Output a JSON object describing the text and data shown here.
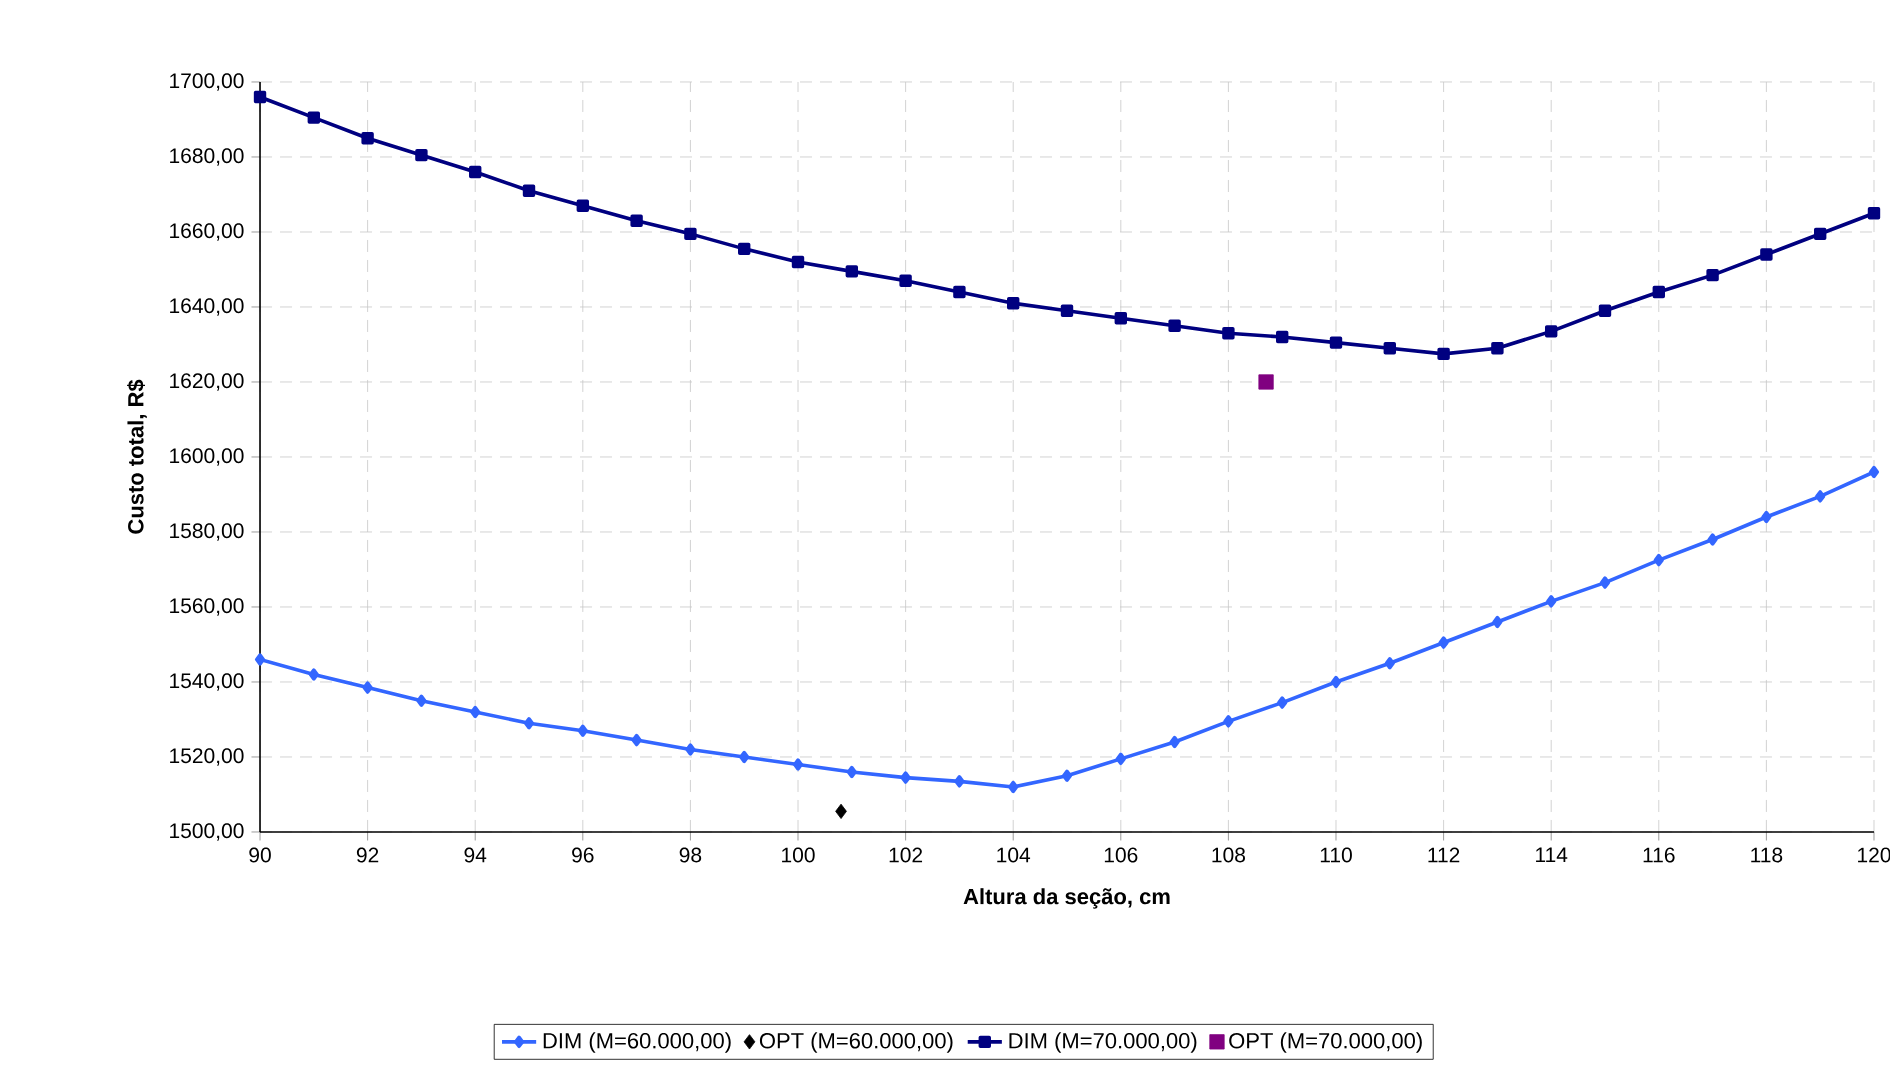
{
  "chart_data": {
    "type": "line",
    "xlabel": "Altura da seção, cm",
    "ylabel": "Custo total, R$",
    "x": [
      90,
      91,
      92,
      93,
      94,
      95,
      96,
      97,
      98,
      99,
      100,
      101,
      102,
      103,
      104,
      105,
      106,
      107,
      108,
      109,
      110,
      111,
      112,
      113,
      114,
      115,
      116,
      117,
      118,
      119,
      120
    ],
    "series": [
      {
        "name": "DIM (M=60.000,00)",
        "color": "#3366ff",
        "marker": "diamond",
        "values": [
          1546,
          1542,
          1538.5,
          1535,
          1532,
          1529,
          1527,
          1524.5,
          1522,
          1520,
          1518,
          1516,
          1514.5,
          1513.5,
          1512,
          1515,
          1519.5,
          1524,
          1529.5,
          1534.5,
          1540,
          1545,
          1550.5,
          1556,
          1561.5,
          1566.5,
          1572.5,
          1578,
          1584,
          1589.5,
          1596
        ]
      },
      {
        "name": "OPT (M=60.000,00)",
        "type": "scatter",
        "color": "#000000",
        "marker": "diamond",
        "x": [
          100.8
        ],
        "values": [
          1505.5
        ]
      },
      {
        "name": "DIM (M=70.000,00)",
        "color": "#000080",
        "marker": "square",
        "values": [
          1696,
          1690.5,
          1685,
          1680.5,
          1676,
          1671,
          1667,
          1663,
          1659.5,
          1655.5,
          1652,
          1649.5,
          1647,
          1644,
          1641,
          1639,
          1637,
          1635,
          1633,
          1632,
          1630.5,
          1629,
          1627.5,
          1629,
          1633.5,
          1639,
          1644,
          1648.5,
          1654,
          1659.5,
          1665
        ]
      },
      {
        "name": "OPT (M=70.000,00)",
        "type": "scatter",
        "color": "#800080",
        "marker": "square",
        "x": [
          108.7
        ],
        "values": [
          1620
        ]
      }
    ],
    "xlim": [
      90,
      120
    ],
    "xticks": [
      90,
      92,
      94,
      96,
      98,
      100,
      102,
      104,
      106,
      108,
      110,
      112,
      114,
      116,
      118,
      120
    ],
    "ylim": [
      1500,
      1700
    ],
    "yticks": [
      {
        "value": 1500,
        "label": "1500,00"
      },
      {
        "value": 1520,
        "label": "1520,00"
      },
      {
        "value": 1540,
        "label": "1540,00"
      },
      {
        "value": 1560,
        "label": "1560,00"
      },
      {
        "value": 1580,
        "label": "1580,00"
      },
      {
        "value": 1600,
        "label": "1600,00"
      },
      {
        "value": 1620,
        "label": "1620,00"
      },
      {
        "value": 1640,
        "label": "1640,00"
      },
      {
        "value": 1660,
        "label": "1660,00"
      },
      {
        "value": 1680,
        "label": "1680,00"
      },
      {
        "value": 1700,
        "label": "1700,00"
      }
    ],
    "grid": true,
    "legend": "bottom"
  }
}
